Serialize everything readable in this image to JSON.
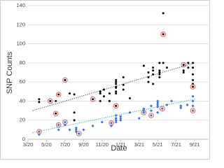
{
  "chart_data": {
    "type": "scatter",
    "x_label": "Date",
    "y_label": "SNP Counts",
    "xlim": [
      0,
      19.5
    ],
    "ylim": [
      0,
      140
    ],
    "xticks": [
      {
        "value": 0,
        "label": "3/20"
      },
      {
        "value": 2,
        "label": "5/20"
      },
      {
        "value": 4,
        "label": "7/20"
      },
      {
        "value": 6,
        "label": "9/20"
      },
      {
        "value": 8,
        "label": "11/20"
      },
      {
        "value": 10,
        "label": "1/21"
      },
      {
        "value": 12,
        "label": "3/21"
      },
      {
        "value": 14,
        "label": "5/21"
      },
      {
        "value": 16,
        "label": "7/21"
      },
      {
        "value": 18,
        "label": "9/21"
      }
    ],
    "yticks": [
      0,
      20,
      40,
      60,
      80,
      100,
      120,
      140
    ],
    "grid": true,
    "series": [
      {
        "color": "#000000",
        "marker": "dot",
        "x": [
          1.2,
          1.2,
          2.4,
          3.0,
          3.0,
          3.3,
          4.0,
          4.5,
          5.0,
          5.0,
          5.0,
          7.0,
          7.8,
          7.8,
          7.8,
          8.2,
          8.2,
          8.8,
          8.8,
          9.5,
          9.5,
          9.5,
          9.5,
          9.5,
          9.5,
          9.5,
          9.5,
          10.3,
          10.3,
          10.3,
          11.0,
          12.5,
          13.0,
          13.0,
          13.0,
          13.5,
          13.5,
          13.5,
          13.5,
          14.2,
          14.2,
          14.2,
          14.2,
          14.2,
          14.6,
          14.6,
          14.6,
          15.0,
          16.8,
          16.8,
          16.8,
          17.3,
          17.3,
          17.8,
          17.8,
          17.8,
          17.8,
          17.8,
          17.8
        ],
        "values": [
          42,
          39,
          40,
          27,
          40,
          47,
          62,
          48,
          20,
          28,
          47,
          42,
          48,
          40,
          50,
          45,
          52,
          40,
          48,
          50,
          55,
          58,
          48,
          62,
          54,
          35,
          60,
          52,
          57,
          65,
          43,
          77,
          60,
          65,
          70,
          72,
          75,
          68,
          58,
          70,
          72,
          68,
          80,
          65,
          110,
          132,
          80,
          75,
          72,
          70,
          78,
          80,
          75,
          68,
          62,
          55,
          75,
          80,
          58
        ]
      },
      {
        "color": "#2e75d6",
        "marker": "diamond",
        "x": [
          1.2,
          1.2,
          3.3,
          3.3,
          4.0,
          4.0,
          4.5,
          5.2,
          5.2,
          5.2,
          5.5,
          6.0,
          7.0,
          8.0,
          9.0,
          9.0,
          9.5,
          9.5,
          9.5,
          9.5,
          10.0,
          10.0,
          10.0,
          11.0,
          12.0,
          12.5,
          12.5,
          12.5,
          13.3,
          13.3,
          13.3,
          14.0,
          14.0,
          14.0,
          14.0,
          14.0,
          14.5,
          15.0,
          15.5,
          16.5,
          16.5,
          17.2,
          17.8,
          17.8,
          17.8,
          17.8
        ],
        "values": [
          5,
          8,
          10,
          15,
          18,
          15,
          10,
          12,
          8,
          10,
          6,
          10,
          14,
          18,
          14,
          17,
          22,
          20,
          18,
          25,
          20,
          24,
          22,
          28,
          22,
          30,
          28,
          32,
          35,
          25,
          30,
          38,
          34,
          36,
          28,
          40,
          32,
          36,
          40,
          33,
          35,
          36,
          30,
          40,
          45,
          35
        ]
      },
      {
        "color": "#e05a5a",
        "marker": "ring",
        "x": [
          2.4,
          3.0,
          3.3,
          4.0,
          7.0,
          9.5,
          14.6,
          17.8,
          16.8,
          1.2,
          3.3,
          4.0,
          5.5,
          9.0,
          12.5,
          13.3,
          14.5,
          17.8
        ],
        "values": [
          40,
          27,
          47,
          62,
          42,
          35,
          110,
          55,
          78,
          8,
          15,
          18,
          6,
          17,
          28,
          25,
          32,
          30
        ]
      }
    ],
    "trendlines": [
      {
        "color": "#555555",
        "x": [
          0.5,
          18
        ],
        "values": [
          30,
          80
        ]
      },
      {
        "color": "#2ab0c0",
        "x": [
          0.5,
          18
        ],
        "values": [
          7,
          42
        ]
      }
    ]
  }
}
